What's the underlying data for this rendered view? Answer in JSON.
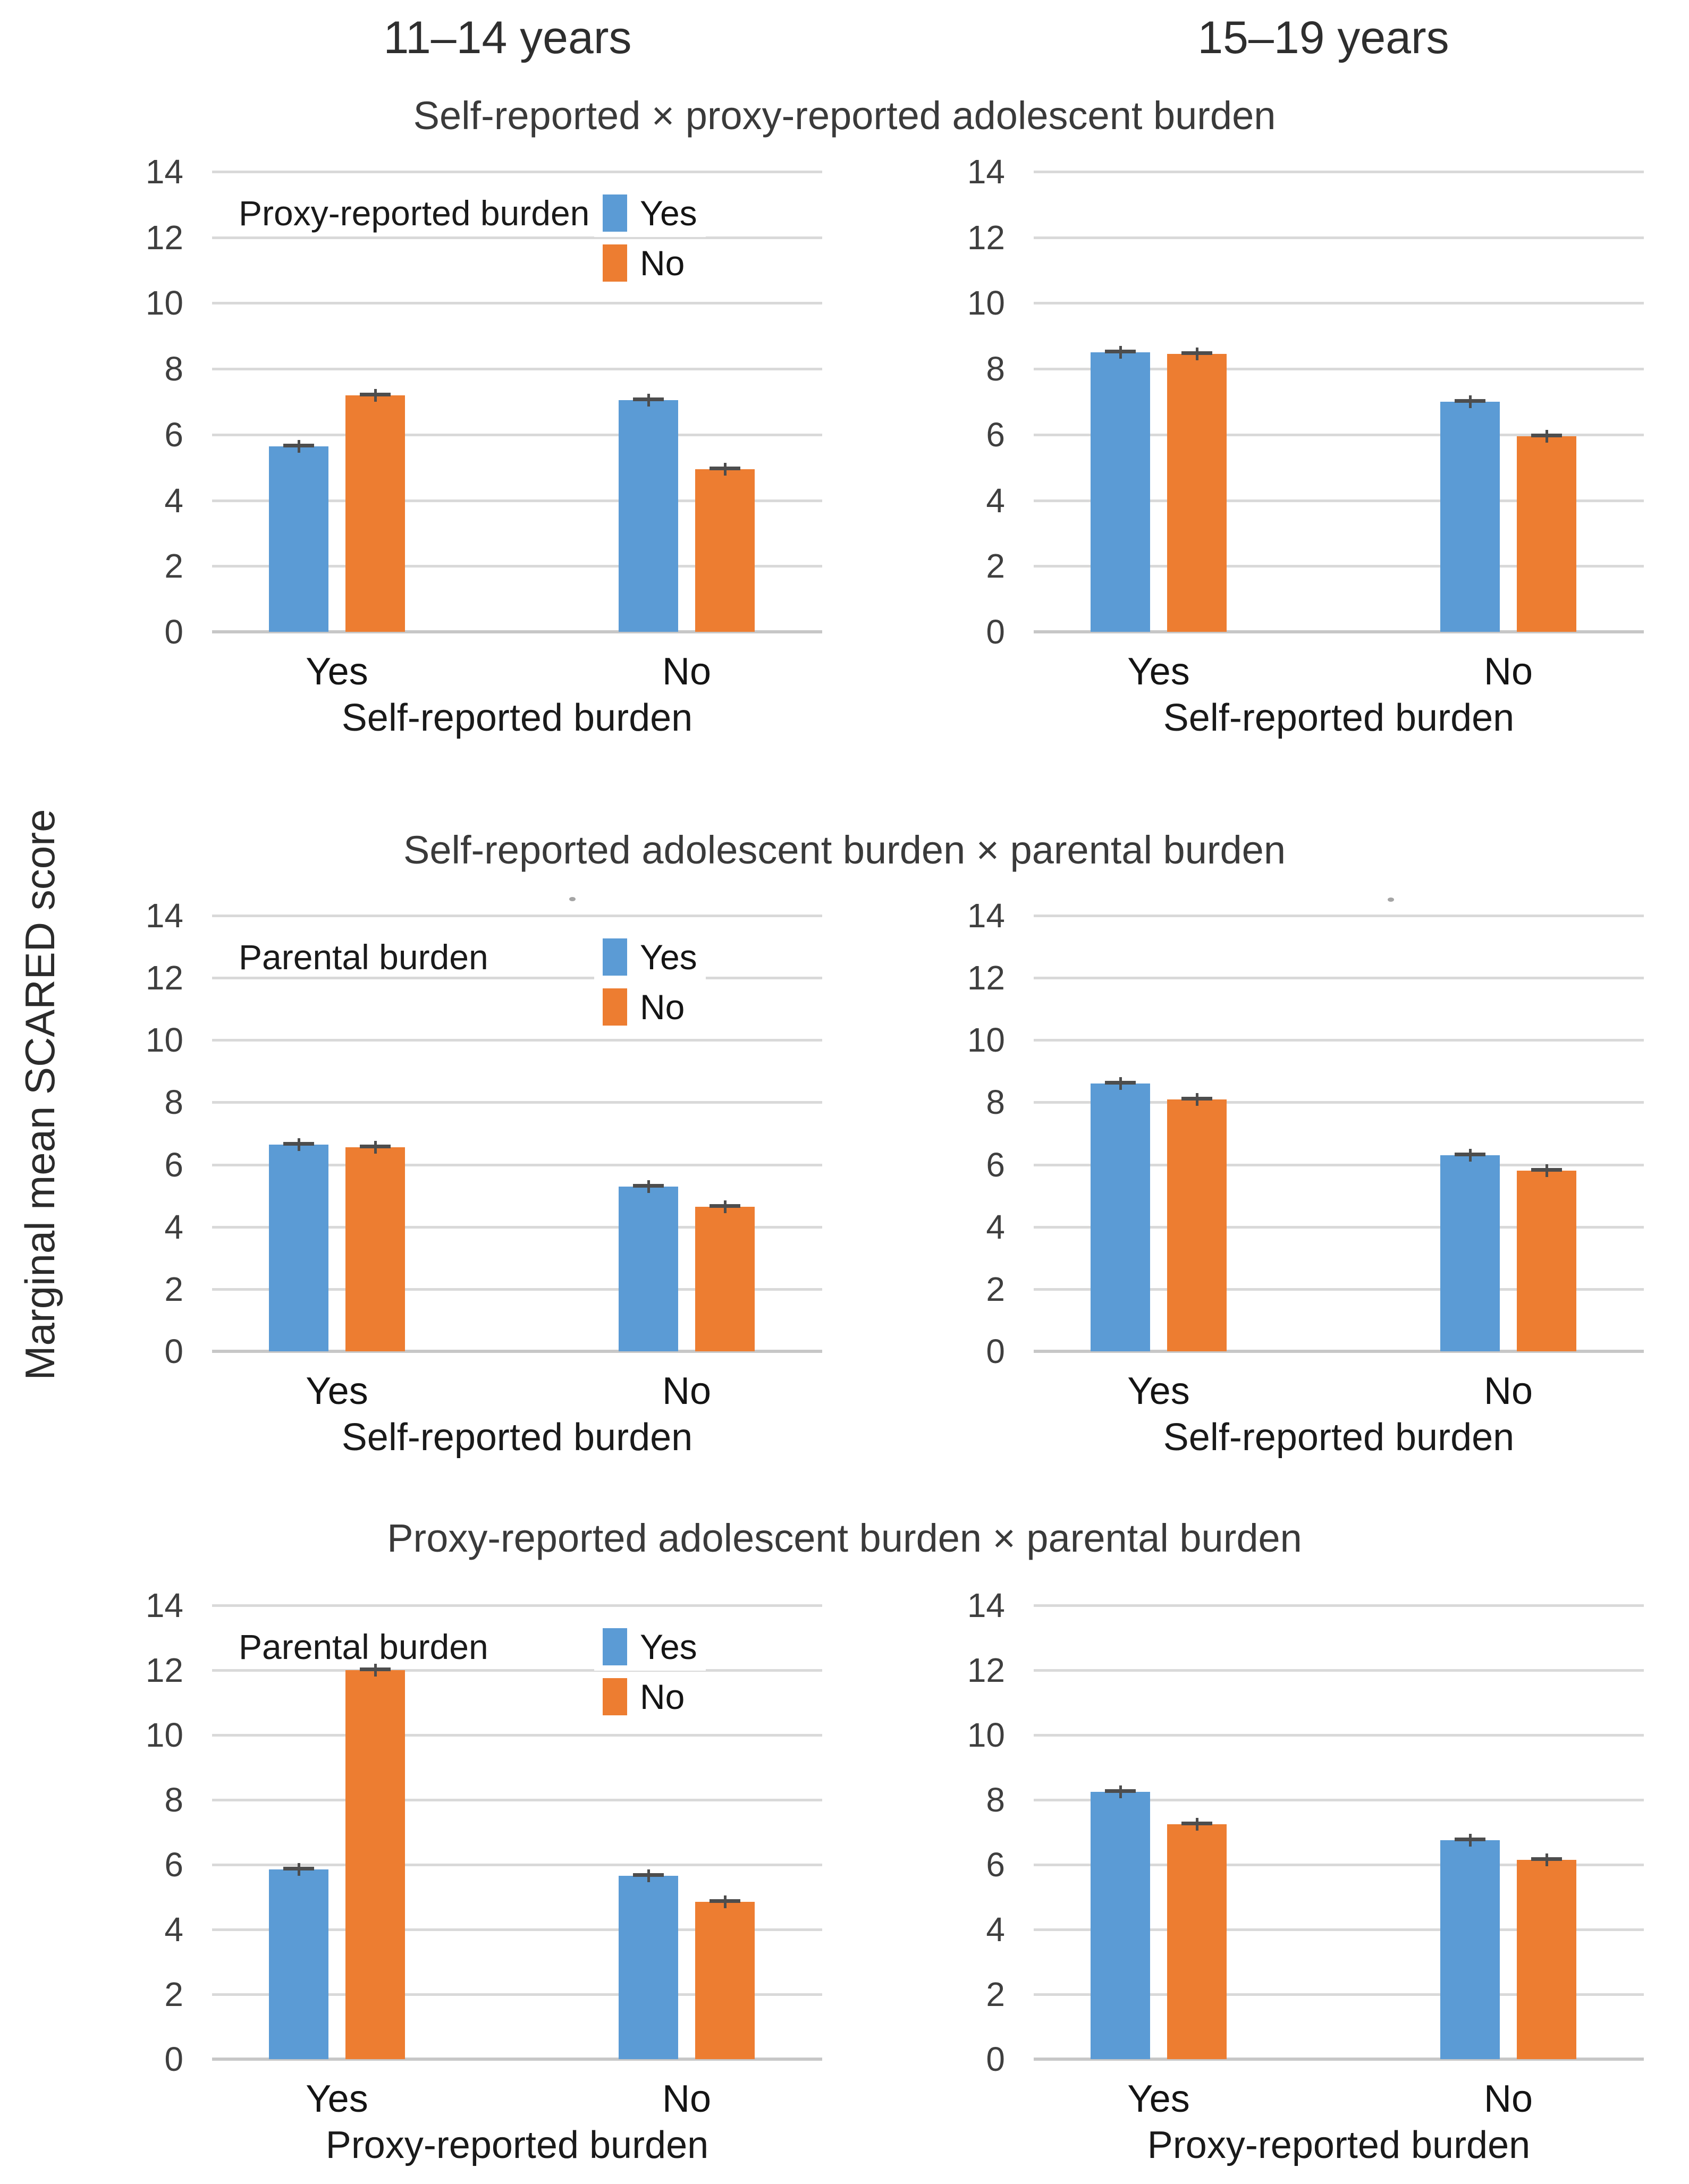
{
  "figure": {
    "column_headers": [
      "11–14 years",
      "15–19 years"
    ],
    "y_axis_label": "Marginal mean SCARED score"
  },
  "chart_data": {
    "type": "bar",
    "layout": "grid of 3 rows (burden interactions) × 2 columns (age groups), grouped bars with error bars",
    "age_groups": [
      "11–14 years",
      "15–19 years"
    ],
    "y_axis": {
      "label": "Marginal mean SCARED score",
      "min": 0,
      "max": 14,
      "tick_step": 2,
      "ticks": [
        14,
        12,
        10,
        8,
        6,
        4,
        2,
        0
      ],
      "grid": true
    },
    "series_names": [
      "Yes",
      "No"
    ],
    "series_colors": {
      "Yes": "#5B9BD5",
      "No": "#ED7D31"
    },
    "error_bar_value": 0.1,
    "legend_position": "inside top-left panel of each row",
    "rows": [
      {
        "title": "Self-reported × proxy-reported adolescent burden",
        "legend_label": "Proxy-reported burden",
        "x_axis_label": "Self-reported burden",
        "categories": [
          "Yes",
          "No"
        ],
        "panels": [
          {
            "age_group": "11–14 years",
            "show_legend": true,
            "series": [
              {
                "name": "Yes",
                "values": [
                  5.65,
                  7.05
                ]
              },
              {
                "name": "No",
                "values": [
                  7.2,
                  4.95
                ]
              }
            ]
          },
          {
            "age_group": "15–19 years",
            "show_legend": false,
            "series": [
              {
                "name": "Yes",
                "values": [
                  8.5,
                  7.0
                ]
              },
              {
                "name": "No",
                "values": [
                  8.45,
                  5.95
                ]
              }
            ]
          }
        ]
      },
      {
        "title": "Self-reported adolescent burden × parental burden",
        "legend_label": "Parental burden",
        "x_axis_label": "Self-reported burden",
        "categories": [
          "Yes",
          "No"
        ],
        "panels": [
          {
            "age_group": "11–14 years",
            "show_legend": true,
            "series": [
              {
                "name": "Yes",
                "values": [
                  6.65,
                  5.3
                ]
              },
              {
                "name": "No",
                "values": [
                  6.55,
                  4.65
                ]
              }
            ]
          },
          {
            "age_group": "15–19 years",
            "show_legend": false,
            "series": [
              {
                "name": "Yes",
                "values": [
                  8.6,
                  6.3
                ]
              },
              {
                "name": "No",
                "values": [
                  8.1,
                  5.8
                ]
              }
            ]
          }
        ]
      },
      {
        "title": "Proxy-reported adolescent burden × parental burden",
        "legend_label": "Parental burden",
        "x_axis_label": "Proxy-reported burden",
        "categories": [
          "Yes",
          "No"
        ],
        "panels": [
          {
            "age_group": "11–14 years",
            "show_legend": true,
            "series": [
              {
                "name": "Yes",
                "values": [
                  5.85,
                  5.65
                ]
              },
              {
                "name": "No",
                "values": [
                  12.0,
                  4.85
                ]
              }
            ]
          },
          {
            "age_group": "15–19 years",
            "show_legend": false,
            "series": [
              {
                "name": "Yes",
                "values": [
                  8.25,
                  6.75
                ]
              },
              {
                "name": "No",
                "values": [
                  7.25,
                  6.15
                ]
              }
            ]
          }
        ]
      }
    ]
  }
}
